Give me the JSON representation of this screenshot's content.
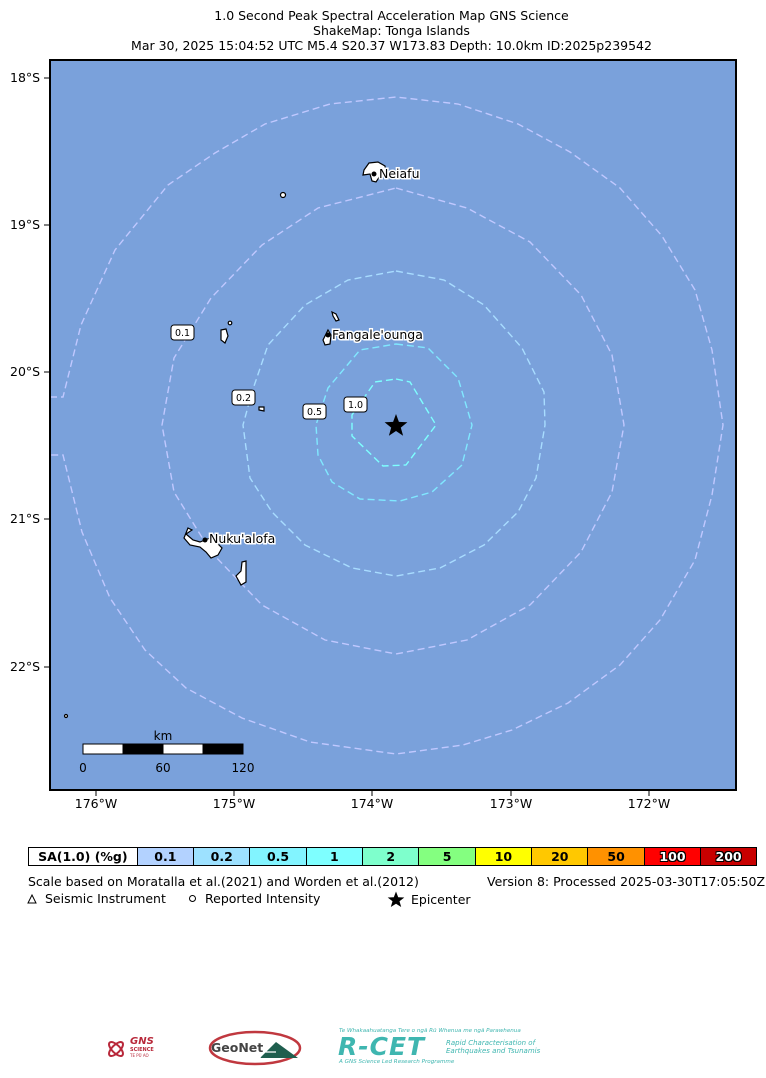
{
  "header": {
    "line1": "1.0 Second Peak Spectral Acceleration Map GNS Science",
    "line2": "ShakeMap: Tonga Islands",
    "line3": "Mar 30, 2025 15:04:52 UTC M5.4 S20.37 W173.83 Depth: 10.0km ID:2025p239542"
  },
  "axes": {
    "lat_labels": [
      "18°S",
      "19°S",
      "20°S",
      "21°S",
      "22°S"
    ],
    "lon_labels": [
      "176°W",
      "175°W",
      "174°W",
      "173°W",
      "172°W"
    ]
  },
  "places": [
    "Neiafu",
    "Fangale'ounga",
    "Nuku'alofa"
  ],
  "contour_labels": [
    "0.1",
    "0.2",
    "0.5",
    "1.0"
  ],
  "scale_bar": {
    "unit": "km",
    "ticks": [
      "0",
      "60",
      "120"
    ]
  },
  "legend": {
    "header": "SA(1.0) (%g)",
    "items": [
      {
        "label": "0.1",
        "color": "#b3d2ff"
      },
      {
        "label": "0.2",
        "color": "#9de1ff"
      },
      {
        "label": "0.5",
        "color": "#82f4ff"
      },
      {
        "label": "1",
        "color": "#7effff"
      },
      {
        "label": "2",
        "color": "#7effcc"
      },
      {
        "label": "5",
        "color": "#84ff80"
      },
      {
        "label": "10",
        "color": "#ffff00"
      },
      {
        "label": "20",
        "color": "#ffc800"
      },
      {
        "label": "50",
        "color": "#ff9100"
      },
      {
        "label": "100",
        "color": "#ff0000"
      },
      {
        "label": "200",
        "color": "#c80000"
      }
    ]
  },
  "notes": {
    "scale_text": "Scale based on Moratalla et al.(2021) and Worden et al.(2012)",
    "version_text": "Version 8: Processed 2025-03-30T17:05:50Z",
    "seismic": "Seismic Instrument",
    "reported": "Reported Intensity",
    "epicenter": "Epicenter"
  },
  "logos": {
    "gns_line1": "GNS",
    "gns_line2": "SCIENCE",
    "gns_line3": "TE PŪ AO",
    "geonet": "GeoNet",
    "rcet": "R-CET",
    "rcet_tag1": "Te Whakaahuatanga Tere o ngā Rū Whenua me ngā Parawhenua",
    "rcet_tag2": "Rapid Characterisation of",
    "rcet_tag3": "Earthquakes and Tsunamis",
    "rcet_tag4": "A GNS Science Led Research Programme"
  },
  "colors": {
    "ocean": "#7aa1db",
    "contour_outer": "#c0c8ff",
    "contour_inner": "#80e8ff"
  }
}
